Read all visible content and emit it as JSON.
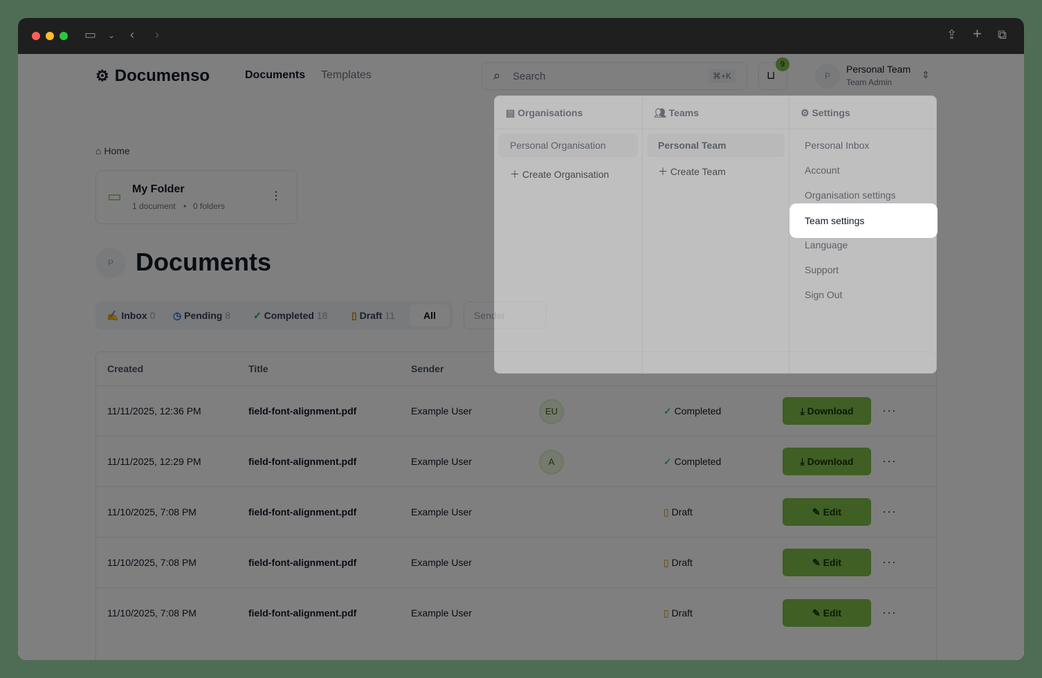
{
  "header": {
    "logo": "Documenso",
    "nav": [
      "Documents",
      "Templates"
    ],
    "search_placeholder": "Search",
    "shortcut": "⌘+K",
    "inbox_badge": "9",
    "team_name": "Personal Team",
    "team_role": "Team Admin",
    "avatar": "P"
  },
  "breadcrumb": "Home",
  "folder": {
    "name": "My Folder",
    "documents": "1 document",
    "folders": "0 folders"
  },
  "page": {
    "avatar": "P",
    "title": "Documents"
  },
  "tabs": [
    {
      "label": "Inbox",
      "count": "0"
    },
    {
      "label": "Pending",
      "count": "8"
    },
    {
      "label": "Completed",
      "count": "18"
    },
    {
      "label": "Draft",
      "count": "11"
    },
    {
      "label": "All",
      "count": ""
    }
  ],
  "sender_filter_placeholder": "Sender",
  "table": {
    "headers": [
      "Created",
      "Title",
      "Sender"
    ],
    "rows": [
      {
        "created": "11/11/2025, 12:36 PM",
        "title": "field-font-alignment.pdf",
        "sender": "Example User",
        "recipient": "EU",
        "status": "Completed",
        "action": "Download"
      },
      {
        "created": "11/11/2025, 12:29 PM",
        "title": "field-font-alignment.pdf",
        "sender": "Example User",
        "recipient": "A",
        "status": "Completed",
        "action": "Download"
      },
      {
        "created": "11/10/2025, 7:08 PM",
        "title": "field-font-alignment.pdf",
        "sender": "Example User",
        "recipient": "",
        "status": "Draft",
        "action": "Edit"
      },
      {
        "created": "11/10/2025, 7:08 PM",
        "title": "field-font-alignment.pdf",
        "sender": "Example User",
        "recipient": "",
        "status": "Draft",
        "action": "Edit"
      },
      {
        "created": "11/10/2025, 7:08 PM",
        "title": "field-font-alignment.pdf",
        "sender": "Example User",
        "recipient": "",
        "status": "Draft",
        "action": "Edit"
      }
    ]
  },
  "menu": {
    "organisations": {
      "title": "Organisations",
      "items": [
        "Personal Organisation"
      ],
      "create": "Create Organisation"
    },
    "teams": {
      "title": "Teams",
      "items": [
        "Personal Team"
      ],
      "create": "Create Team"
    },
    "settings": {
      "title": "Settings",
      "items": [
        "Personal Inbox",
        "Account",
        "Organisation settings",
        "Team settings",
        "Language",
        "Support",
        "Sign Out"
      ]
    }
  },
  "colors": {
    "accent": "#7fbf4a",
    "completed": "#16a34a",
    "pending": "#2563eb",
    "draft": "#ca8a04"
  }
}
